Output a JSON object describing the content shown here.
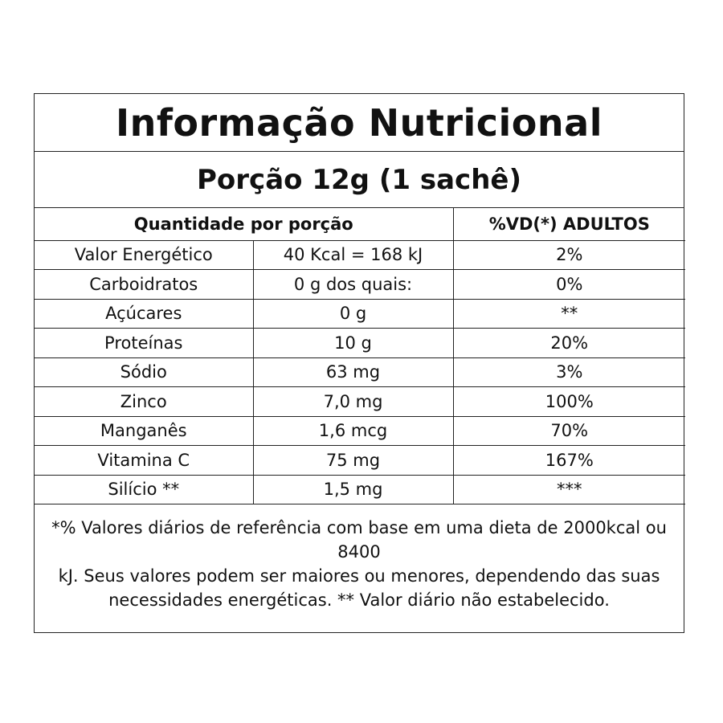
{
  "title": "Informação Nutricional",
  "portion": "Porção 12g (1 sachê)",
  "headers": {
    "quantity": "Quantidade por porção",
    "dv": "%VD(*) ADULTOS"
  },
  "rows": [
    {
      "name": "Valor Energético",
      "amount": "40 Kcal = 168 kJ",
      "dv": "2%"
    },
    {
      "name": "Carboidratos",
      "amount": "0 g dos quais:",
      "dv": "0%"
    },
    {
      "name": "Açúcares",
      "amount": "0 g",
      "dv": "**"
    },
    {
      "name": "Proteínas",
      "amount": "10 g",
      "dv": "20%"
    },
    {
      "name": "Sódio",
      "amount": "63 mg",
      "dv": "3%"
    },
    {
      "name": "Zinco",
      "amount": "7,0 mg",
      "dv": "100%"
    },
    {
      "name": "Manganês",
      "amount": "1,6 mcg",
      "dv": "70%"
    },
    {
      "name": "Vitamina C",
      "amount": "75 mg",
      "dv": "167%"
    },
    {
      "name": "Silício **",
      "amount": "1,5 mg",
      "dv": "***"
    }
  ],
  "footnote": {
    "line1": "*% Valores diários de referência com base em uma dieta de 2000kcal ou 8400",
    "line2": "kJ. Seus valores podem ser maiores ou menores, dependendo das suas necessidades energéticas. ** Valor diário não estabelecido."
  }
}
